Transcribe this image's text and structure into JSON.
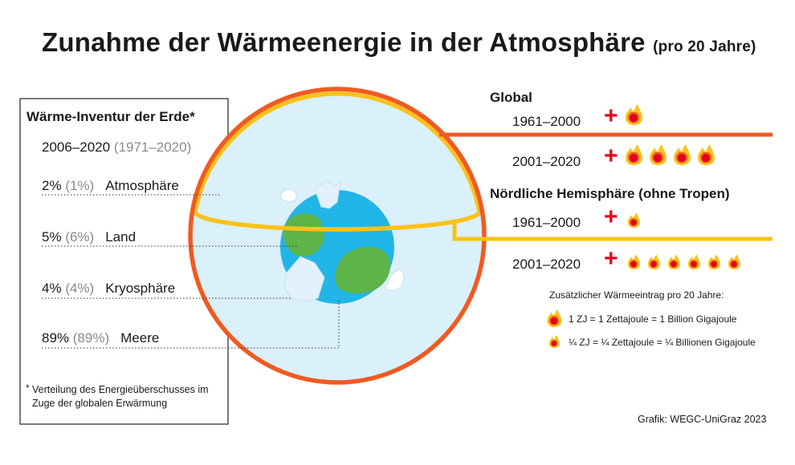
{
  "title": "Zunahme der Wärmeenergie in der Atmosphäre",
  "subtitle": "(pro 20 Jahre)",
  "inventory": {
    "title": "Wärme-Inventur der Erde*",
    "period": "2006–2020",
    "period_ref": "(1971–2020)",
    "rows": [
      {
        "pct": "2%",
        "ref": "(1%)",
        "label": "Atmosphäre"
      },
      {
        "pct": "5%",
        "ref": "(6%)",
        "label": "Land"
      },
      {
        "pct": "4%",
        "ref": "(4%)",
        "label": "Kryosphäre"
      },
      {
        "pct": "89%",
        "ref": "(89%)",
        "label": "Meere"
      }
    ],
    "footnote_star": "*",
    "footnote": "Verteilung des Energieüberschusses im Zuge der globalen Erwärmung"
  },
  "global": {
    "heading": "Global",
    "rows": [
      {
        "period": "1961–2000",
        "plus": "+",
        "value_zj": 1
      },
      {
        "period": "2001–2020",
        "plus": "+",
        "value_zj": 4
      }
    ]
  },
  "north": {
    "heading": "Nördliche Hemisphäre (ohne Tropen)",
    "rows": [
      {
        "period": "1961–2000",
        "plus": "+",
        "value_zj": 0.25
      },
      {
        "period": "2001–2020",
        "plus": "+",
        "value_zj": 1.5
      }
    ]
  },
  "legend": {
    "heading": "Zusätzlicher Wärmeeintrag pro 20 Jahre:",
    "full": "1 ZJ = 1 Zettajoule = 1 Billion Gigajoule",
    "quarter": "¼ ZJ = ¼ Zettajoule = ¼ Billionen Gigajoule"
  },
  "credit": "Grafik: WEGC-UniGraz 2023",
  "colors": {
    "orange": "#f15a22",
    "yellow": "#fbc21a",
    "red": "#e2001a",
    "atmosphere": "#daf0fa",
    "ocean": "#22b5e8",
    "land": "#5db449",
    "ice": "#e2f1fa"
  },
  "icons": {
    "flame": "flame-icon"
  }
}
